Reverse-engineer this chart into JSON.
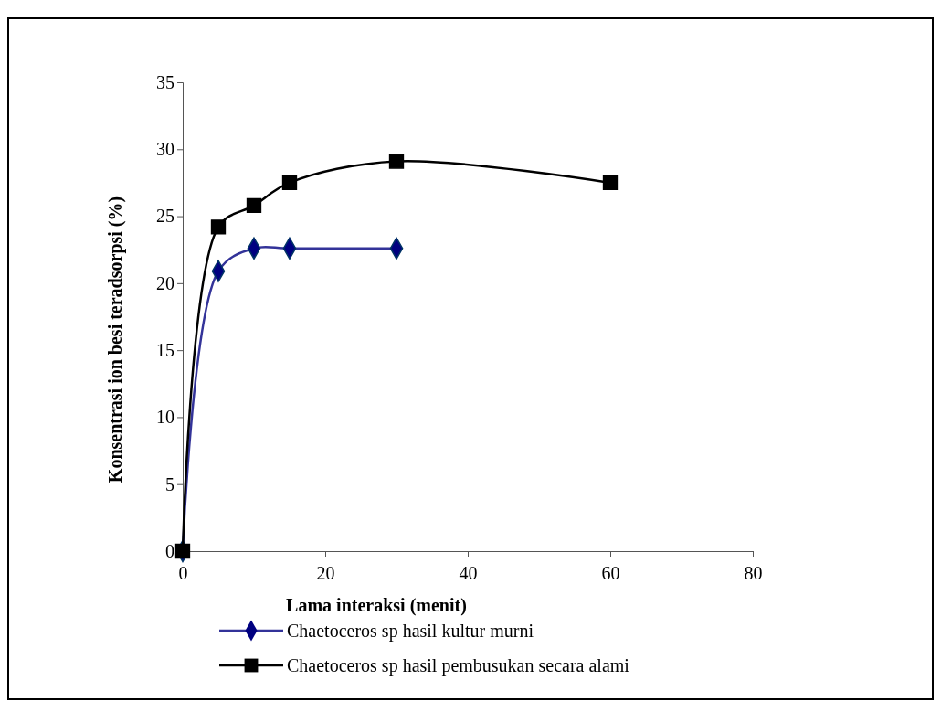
{
  "chart_data": {
    "type": "line",
    "xlabel": "Lama interaksi (menit)",
    "ylabel": "Konsentrasi ion besi teradsorpsi (%)",
    "xlim": [
      0,
      80
    ],
    "xticks": [
      0,
      20,
      40,
      60,
      80
    ],
    "ylim": [
      0,
      35
    ],
    "yticks": [
      0,
      5,
      10,
      15,
      20,
      25,
      30,
      35
    ],
    "grid": false,
    "legend": "bottom",
    "series": [
      {
        "name": "Chaetoceros sp hasil kultur murni",
        "color": "#333399",
        "marker": "diamond",
        "x": [
          0,
          5,
          10,
          15,
          30
        ],
        "values": [
          0,
          20.9,
          22.6,
          22.6,
          22.6
        ]
      },
      {
        "name": "Chaetoceros sp hasil pembusukan secara alami",
        "color": "#000000",
        "marker": "square",
        "x": [
          0,
          5,
          10,
          15,
          30,
          60
        ],
        "values": [
          0,
          24.2,
          25.8,
          27.5,
          29.1,
          27.5
        ]
      }
    ]
  }
}
